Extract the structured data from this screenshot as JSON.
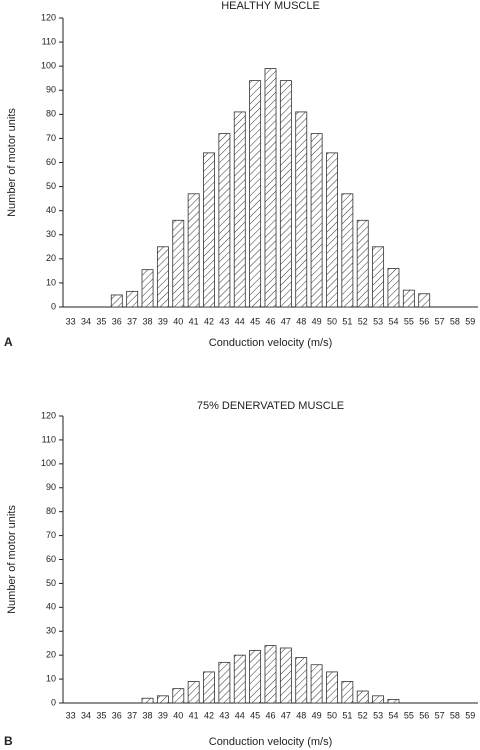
{
  "chart_data": [
    {
      "type": "bar",
      "panel": "A",
      "title": "HEALTHY MUSCLE",
      "x_label": "Conduction velocity (m/s)",
      "y_label": "Number of motor units",
      "categories": [
        "33",
        "34",
        "35",
        "36",
        "37",
        "38",
        "39",
        "40",
        "41",
        "42",
        "43",
        "44",
        "45",
        "46",
        "47",
        "48",
        "49",
        "50",
        "51",
        "52",
        "53",
        "54",
        "55",
        "56",
        "57",
        "58",
        "59"
      ],
      "values": [
        0,
        0,
        0,
        5,
        6.5,
        15.5,
        25,
        36,
        47,
        64,
        72,
        81,
        94,
        99,
        94,
        81,
        72,
        64,
        47,
        36,
        25,
        16,
        7,
        5.5,
        0,
        0,
        0
      ],
      "color": "#333333",
      "ylim": [
        0,
        120
      ],
      "yticks": [
        0,
        10,
        20,
        30,
        40,
        50,
        60,
        70,
        80,
        90,
        100,
        110,
        120
      ]
    },
    {
      "type": "bar",
      "panel": "B",
      "title": "75% DENERVATED MUSCLE",
      "x_label": "Conduction velocity (m/s)",
      "y_label": "Number of motor units",
      "categories": [
        "33",
        "34",
        "35",
        "36",
        "37",
        "38",
        "39",
        "40",
        "41",
        "42",
        "43",
        "44",
        "45",
        "46",
        "47",
        "48",
        "49",
        "50",
        "51",
        "52",
        "53",
        "54",
        "55",
        "56",
        "57",
        "58",
        "59"
      ],
      "values": [
        0,
        0,
        0,
        0,
        0,
        2,
        3,
        6,
        9,
        13,
        17,
        20,
        22,
        24,
        23,
        19,
        16,
        13,
        9,
        5,
        3,
        1.5,
        0,
        0,
        0,
        0,
        0
      ],
      "color": "#333333",
      "ylim": [
        0,
        120
      ],
      "yticks": [
        0,
        10,
        20,
        30,
        40,
        50,
        60,
        70,
        80,
        90,
        100,
        110,
        120
      ]
    }
  ]
}
